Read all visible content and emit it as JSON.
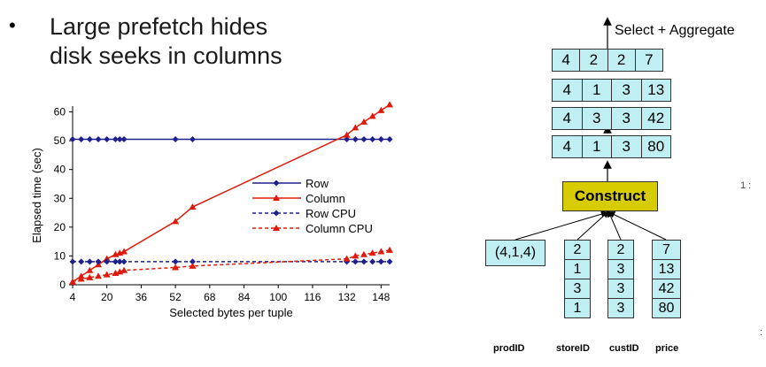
{
  "bullet": {
    "symbol": "•",
    "line1": "Large prefetch hides",
    "line2": "disk seeks in columns"
  },
  "chart_data": {
    "type": "line",
    "xlabel": "Selected bytes per tuple",
    "ylabel": "Elapsed time (sec)",
    "xticks": [
      4,
      20,
      36,
      52,
      68,
      84,
      100,
      116,
      132,
      148
    ],
    "yticks": [
      0,
      10,
      20,
      30,
      40,
      50,
      60
    ],
    "xlim": [
      4,
      152
    ],
    "ylim": [
      0,
      62
    ],
    "legend_position": "center-right",
    "series": [
      {
        "name": "Row",
        "color": "#1f1f8f",
        "dash": false,
        "marker": "diamond",
        "x": [
          4,
          8,
          12,
          16,
          20,
          24,
          26,
          28,
          52,
          60,
          132,
          136,
          140,
          144,
          148,
          152
        ],
        "y": [
          50.5,
          50.5,
          50.5,
          50.5,
          50.5,
          50.5,
          50.5,
          50.5,
          50.5,
          50.5,
          50.5,
          50.5,
          50.5,
          50.5,
          50.5,
          50.5
        ]
      },
      {
        "name": "Column",
        "color": "#e01a0a",
        "dash": false,
        "marker": "triangle",
        "x": [
          4,
          8,
          12,
          16,
          20,
          24,
          26,
          28,
          52,
          60,
          132,
          136,
          140,
          144,
          148,
          152
        ],
        "y": [
          1,
          3,
          5,
          7,
          9,
          10.5,
          11,
          11.5,
          22,
          27,
          52,
          54.5,
          56.5,
          58.5,
          60.5,
          62.5
        ]
      },
      {
        "name": "Row CPU",
        "color": "#1f1f8f",
        "dash": true,
        "marker": "diamond",
        "x": [
          4,
          8,
          12,
          16,
          20,
          24,
          26,
          28,
          52,
          60,
          132,
          136,
          140,
          144,
          148,
          152
        ],
        "y": [
          8,
          8,
          8,
          8,
          8,
          8,
          8,
          8,
          8,
          8,
          8,
          8,
          8,
          8,
          8,
          8
        ]
      },
      {
        "name": "Column CPU",
        "color": "#e01a0a",
        "dash": true,
        "marker": "triangle",
        "x": [
          4,
          8,
          12,
          16,
          20,
          24,
          26,
          28,
          52,
          60,
          132,
          136,
          140,
          144,
          148,
          152
        ],
        "y": [
          1,
          2,
          2.5,
          3,
          3.5,
          4,
          4.5,
          5,
          6,
          6.5,
          9,
          10,
          10.5,
          11,
          11.5,
          12
        ]
      }
    ]
  },
  "diagram": {
    "top_label": "Select + Aggregate",
    "rows": [
      [
        "4",
        "2",
        "2",
        "7"
      ],
      [
        "4",
        "1",
        "3",
        "13"
      ],
      [
        "4",
        "3",
        "3",
        "42"
      ],
      [
        "4",
        "1",
        "3",
        "80"
      ]
    ],
    "construct_label": "Construct",
    "prod_value": "(4,1,4)",
    "columns": [
      {
        "values": [
          "2",
          "1",
          "3",
          "1"
        ]
      },
      {
        "values": [
          "2",
          "3",
          "3",
          "3"
        ]
      },
      {
        "values": [
          "7",
          "13",
          "42",
          "80"
        ]
      }
    ],
    "labels": [
      "prodID",
      "storeID",
      "custID",
      "price"
    ]
  },
  "edge_marks": [
    "1  :",
    ":"
  ]
}
